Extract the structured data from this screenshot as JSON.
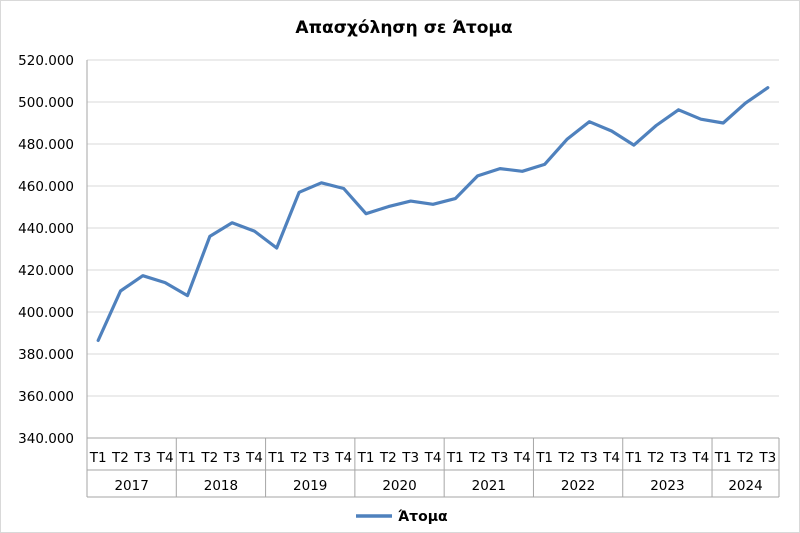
{
  "chart_data": {
    "type": "line",
    "title": "Απασχόληση σε Άτομα",
    "xlabel": "",
    "ylabel": "",
    "ylim": [
      340000,
      520000
    ],
    "yticks": [
      340000,
      360000,
      380000,
      400000,
      420000,
      440000,
      460000,
      480000,
      500000,
      520000
    ],
    "ytick_labels": [
      "340.000",
      "360.000",
      "380.000",
      "400.000",
      "420.000",
      "440.000",
      "460.000",
      "480.000",
      "500.000",
      "520.000"
    ],
    "grid": true,
    "legend": "bottom",
    "years": [
      {
        "label": "2017",
        "quarters": [
          "Τ1",
          "Τ2",
          "Τ3",
          "Τ4"
        ]
      },
      {
        "label": "2018",
        "quarters": [
          "Τ1",
          "Τ2",
          "Τ3",
          "Τ4"
        ]
      },
      {
        "label": "2019",
        "quarters": [
          "Τ1",
          "Τ2",
          "Τ3",
          "Τ4"
        ]
      },
      {
        "label": "2020",
        "quarters": [
          "Τ1",
          "Τ2",
          "Τ3",
          "Τ4"
        ]
      },
      {
        "label": "2021",
        "quarters": [
          "Τ1",
          "Τ2",
          "Τ3",
          "Τ4"
        ]
      },
      {
        "label": "2022",
        "quarters": [
          "Τ1",
          "Τ2",
          "Τ3",
          "Τ4"
        ]
      },
      {
        "label": "2023",
        "quarters": [
          "Τ1",
          "Τ2",
          "Τ3",
          "Τ4"
        ]
      },
      {
        "label": "2024",
        "quarters": [
          "Τ1",
          "Τ2",
          "Τ3"
        ]
      }
    ],
    "series": [
      {
        "name": "Άτομα",
        "color": "#4f81bd",
        "values": [
          386500,
          410000,
          417300,
          414000,
          407800,
          436000,
          442500,
          438500,
          430500,
          457000,
          461500,
          458800,
          446800,
          450200,
          452800,
          451300,
          454000,
          464800,
          468300,
          467000,
          470300,
          482200,
          490600,
          486200,
          479500,
          488800,
          496300,
          491800,
          490000,
          499500,
          506800
        ]
      }
    ]
  }
}
